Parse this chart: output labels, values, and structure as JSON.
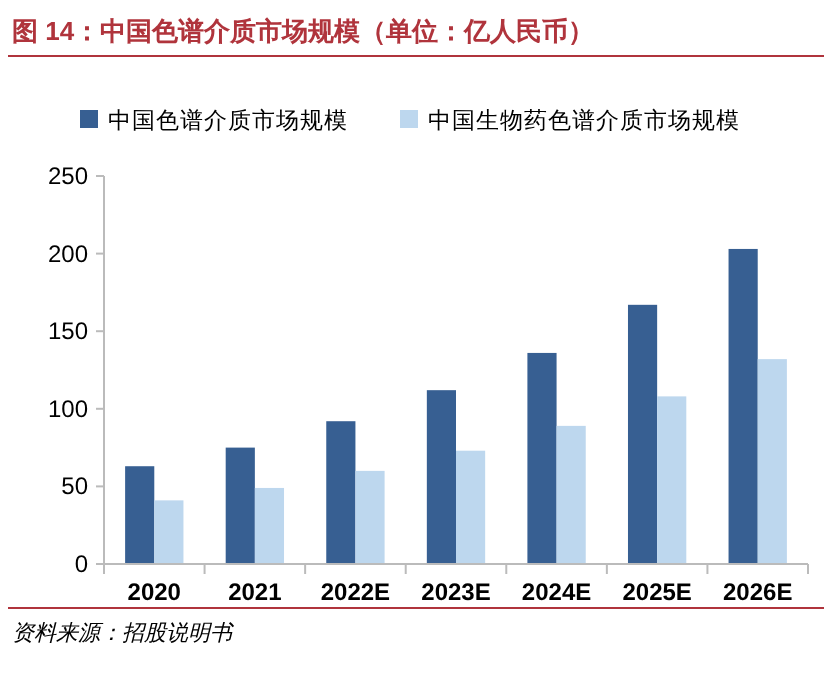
{
  "chart_data": {
    "type": "bar",
    "title": "图 14：中国色谱介质市场规模（单位：亿人民币）",
    "categories": [
      "2020",
      "2021",
      "2022E",
      "2023E",
      "2024E",
      "2025E",
      "2026E"
    ],
    "series": [
      {
        "name": "中国色谱介质市场规模",
        "color": "#375f92",
        "values": [
          63,
          75,
          92,
          112,
          136,
          167,
          203
        ]
      },
      {
        "name": "中国生物药色谱介质市场规模",
        "color": "#bdd7ee",
        "values": [
          41,
          49,
          60,
          73,
          89,
          108,
          132
        ]
      }
    ],
    "ylim": [
      0,
      250
    ],
    "yticks": [
      0,
      50,
      100,
      150,
      200,
      250
    ],
    "grid": false,
    "legend": "top",
    "annotations": [
      "资料来源：招股说明书"
    ]
  }
}
